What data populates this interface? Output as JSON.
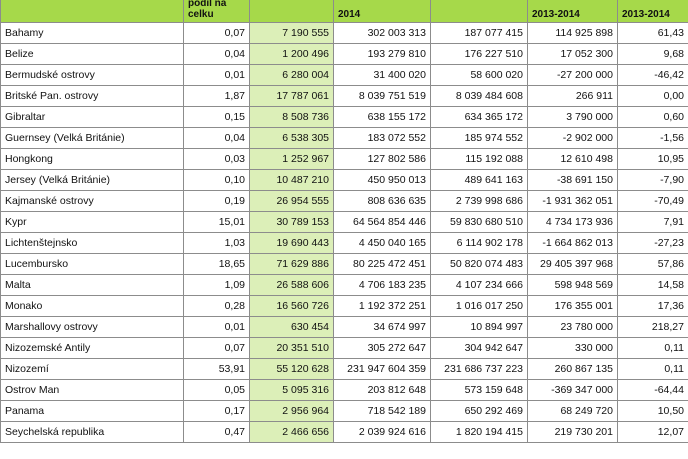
{
  "header": {
    "country": "",
    "share": "podíl na celku",
    "col3": "",
    "year_a": "2014",
    "col5": "",
    "change_abs": "2013-2014",
    "change_pct": "2013-2014"
  },
  "rows": [
    {
      "country": "Bahamy",
      "share": "0,07",
      "c3": "7 190 555",
      "v2014": "302 003 313",
      "c5": "187 077 415",
      "diff": "114 925 898",
      "pct": "61,43"
    },
    {
      "country": "Belize",
      "share": "0,04",
      "c3": "1 200 496",
      "v2014": "193 279 810",
      "c5": "176 227 510",
      "diff": "17 052 300",
      "pct": "9,68"
    },
    {
      "country": "Bermudské ostrovy",
      "share": "0,01",
      "c3": "6 280 004",
      "v2014": "31 400 020",
      "c5": "58 600 020",
      "diff": "-27 200 000",
      "pct": "-46,42"
    },
    {
      "country": "Britské Pan. ostrovy",
      "share": "1,87",
      "c3": "17 787 061",
      "v2014": "8 039 751 519",
      "c5": "8 039 484 608",
      "diff": "266 911",
      "pct": "0,00"
    },
    {
      "country": "Gibraltar",
      "share": "0,15",
      "c3": "8 508 736",
      "v2014": "638 155 172",
      "c5": "634 365 172",
      "diff": "3 790 000",
      "pct": "0,60"
    },
    {
      "country": "Guernsey (Velká Británie)",
      "share": "0,04",
      "c3": "6 538 305",
      "v2014": "183 072 552",
      "c5": "185 974 552",
      "diff": "-2 902 000",
      "pct": "-1,56"
    },
    {
      "country": "Hongkong",
      "share": "0,03",
      "c3": "1 252 967",
      "v2014": "127 802 586",
      "c5": "115 192 088",
      "diff": "12 610 498",
      "pct": "10,95"
    },
    {
      "country": "Jersey (Velká Británie)",
      "share": "0,10",
      "c3": "10 487 210",
      "v2014": "450 950 013",
      "c5": "489 641 163",
      "diff": "-38 691 150",
      "pct": "-7,90"
    },
    {
      "country": "Kajmanské ostrovy",
      "share": "0,19",
      "c3": "26 954 555",
      "v2014": "808 636 635",
      "c5": "2 739 998 686",
      "diff": "-1 931 362 051",
      "pct": "-70,49"
    },
    {
      "country": "Kypr",
      "share": "15,01",
      "c3": "30 789 153",
      "v2014": "64 564 854 446",
      "c5": "59 830 680 510",
      "diff": "4 734 173 936",
      "pct": "7,91"
    },
    {
      "country": "Lichtenštejnsko",
      "share": "1,03",
      "c3": "19 690 443",
      "v2014": "4 450 040 165",
      "c5": "6 114 902 178",
      "diff": "-1 664 862 013",
      "pct": "-27,23"
    },
    {
      "country": "Lucembursko",
      "share": "18,65",
      "c3": "71 629 886",
      "v2014": "80 225 472 451",
      "c5": "50 820 074 483",
      "diff": "29 405 397 968",
      "pct": "57,86"
    },
    {
      "country": "Malta",
      "share": "1,09",
      "c3": "26 588 606",
      "v2014": "4 706 183 235",
      "c5": "4 107 234 666",
      "diff": "598 948 569",
      "pct": "14,58"
    },
    {
      "country": "Monako",
      "share": "0,28",
      "c3": "16 560 726",
      "v2014": "1 192 372 251",
      "c5": "1 016 017 250",
      "diff": "176 355 001",
      "pct": "17,36"
    },
    {
      "country": "Marshallovy ostrovy",
      "share": "0,01",
      "c3": "630 454",
      "v2014": "34 674 997",
      "c5": "10 894 997",
      "diff": "23 780 000",
      "pct": "218,27"
    },
    {
      "country": "Nizozemské Antily",
      "share": "0,07",
      "c3": "20 351 510",
      "v2014": "305 272 647",
      "c5": "304 942 647",
      "diff": "330 000",
      "pct": "0,11"
    },
    {
      "country": "Nizozemí",
      "share": "53,91",
      "c3": "55 120 628",
      "v2014": "231 947 604 359",
      "c5": "231 686 737 223",
      "diff": "260 867 135",
      "pct": "0,11"
    },
    {
      "country": "Ostrov Man",
      "share": "0,05",
      "c3": "5 095 316",
      "v2014": "203 812 648",
      "c5": "573 159 648",
      "diff": "-369 347 000",
      "pct": "-64,44"
    },
    {
      "country": "Panama",
      "share": "0,17",
      "c3": "2 956 964",
      "v2014": "718 542 189",
      "c5": "650 292 469",
      "diff": "68 249 720",
      "pct": "10,50"
    },
    {
      "country": "Seychelská republika",
      "share": "0,47",
      "c3": "2 466 656",
      "v2014": "2 039 924 616",
      "c5": "1 820 194 415",
      "diff": "219 730 201",
      "pct": "12,07"
    }
  ]
}
